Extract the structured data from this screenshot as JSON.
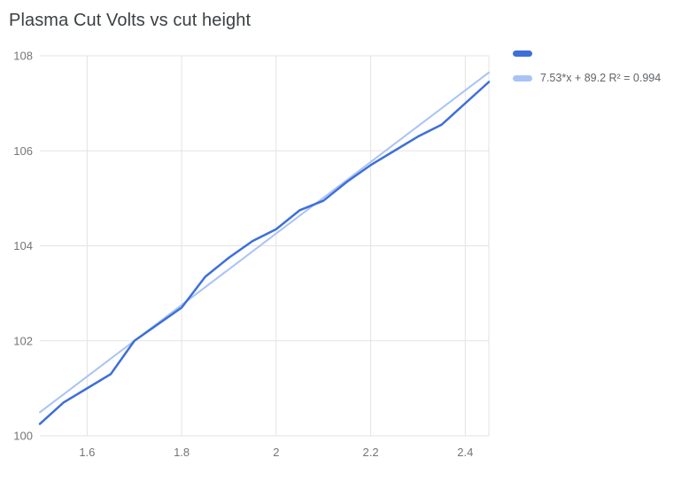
{
  "chart_data": {
    "type": "line",
    "title": "Plasma Cut Volts vs cut height",
    "xlabel": "",
    "ylabel": "",
    "xlim": [
      1.5,
      2.45
    ],
    "ylim": [
      100,
      108
    ],
    "grid": true,
    "legend_position": "top-right",
    "colors": {
      "series": "#3d6fd8",
      "trendline": "#a9c3f5",
      "gridline": "#e3e3e3",
      "tick_text": "#757575",
      "title_text": "#3c4043"
    },
    "x": [
      1.5,
      1.55,
      1.6,
      1.65,
      1.7,
      1.75,
      1.8,
      1.85,
      1.9,
      1.95,
      2.0,
      2.05,
      2.1,
      2.15,
      2.2,
      2.25,
      2.3,
      2.35,
      2.4,
      2.45
    ],
    "series": [
      {
        "name": "",
        "legend_label": "",
        "values": [
          100.25,
          100.7,
          101.0,
          101.3,
          102.0,
          102.35,
          102.7,
          103.35,
          103.75,
          104.1,
          104.35,
          104.75,
          104.95,
          105.35,
          105.7,
          106.0,
          106.3,
          106.55,
          107.0,
          107.45
        ]
      }
    ],
    "trendline": {
      "slope": 7.53,
      "intercept": 89.2,
      "r_squared": 0.994,
      "legend_label": "7.53*x + 89.2 R² = 0.994"
    },
    "x_ticks": [
      {
        "value": 1.6,
        "label": "1.6"
      },
      {
        "value": 1.8,
        "label": "1.8"
      },
      {
        "value": 2.0,
        "label": "2"
      },
      {
        "value": 2.2,
        "label": "2.2"
      },
      {
        "value": 2.4,
        "label": "2.4"
      }
    ],
    "y_ticks": [
      {
        "value": 100,
        "label": "100"
      },
      {
        "value": 102,
        "label": "102"
      },
      {
        "value": 104,
        "label": "104"
      },
      {
        "value": 106,
        "label": "106"
      },
      {
        "value": 108,
        "label": "108"
      }
    ]
  }
}
